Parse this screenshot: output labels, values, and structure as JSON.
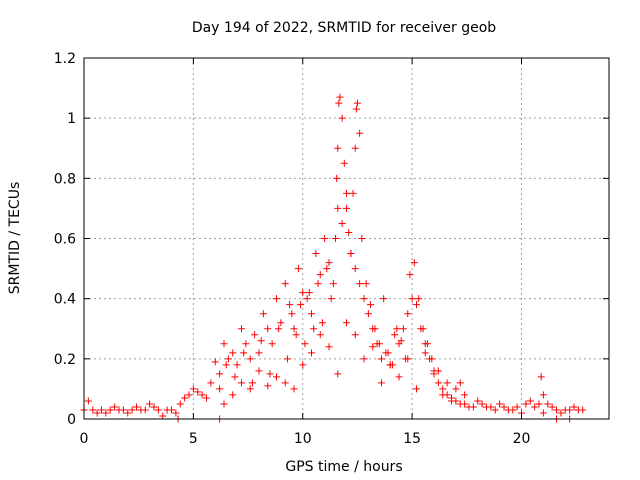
{
  "chart_data": {
    "type": "scatter",
    "title": "Day 194 of 2022, SRMTID for receiver geob",
    "xlabel": "GPS time / hours",
    "ylabel": "SRMTID / TECUs",
    "xlim": [
      0,
      24
    ],
    "ylim": [
      0,
      1.2
    ],
    "xticks": [
      0,
      5,
      10,
      15,
      20
    ],
    "xtick_labels": [
      "0",
      "5",
      "10",
      "15",
      "20"
    ],
    "yticks": [
      0,
      0.2,
      0.4,
      0.6,
      0.8,
      1,
      1.2
    ],
    "ytick_labels": [
      "0",
      "0.2",
      "0.4",
      "0.6",
      "0.8",
      "1",
      "1.2"
    ],
    "grid": true,
    "marker": "+",
    "color": "#ff0000",
    "series": [
      {
        "name": "SRMTID",
        "x": [
          0.0,
          0.2,
          0.4,
          0.6,
          0.8,
          1.0,
          1.2,
          1.4,
          1.6,
          1.8,
          2.0,
          2.2,
          2.4,
          2.6,
          2.8,
          3.0,
          3.2,
          3.4,
          3.6,
          3.8,
          4.0,
          4.2,
          4.4,
          4.6,
          4.8,
          5.0,
          5.2,
          5.4,
          5.6,
          5.8,
          6.0,
          6.2,
          6.4,
          6.6,
          6.8,
          7.0,
          7.2,
          7.4,
          7.6,
          7.8,
          8.0,
          8.2,
          8.4,
          8.6,
          8.8,
          9.0,
          9.2,
          9.4,
          9.6,
          9.8,
          10.0,
          10.2,
          10.4,
          10.6,
          10.8,
          11.0,
          11.2,
          11.4,
          11.6,
          11.8,
          12.0,
          12.2,
          12.4,
          12.6,
          12.8,
          13.0,
          13.2,
          13.4,
          13.6,
          13.8,
          14.0,
          14.2,
          14.4,
          14.6,
          14.8,
          15.0,
          15.2,
          15.4,
          15.6,
          15.8,
          16.0,
          16.2,
          16.4,
          16.6,
          16.8,
          17.0,
          17.2,
          17.4,
          17.6,
          17.8,
          18.0,
          18.2,
          18.4,
          18.6,
          18.8,
          19.0,
          19.2,
          19.4,
          19.6,
          19.8,
          20.0,
          20.2,
          20.4,
          20.6,
          20.8,
          21.0,
          21.2,
          21.4,
          21.6,
          21.8,
          22.0,
          22.2,
          22.4,
          22.6,
          22.8,
          6.2,
          6.5,
          6.9,
          7.3,
          7.7,
          8.1,
          8.5,
          8.9,
          9.3,
          9.5,
          9.7,
          9.9,
          10.1,
          10.3,
          10.5,
          10.7,
          10.9,
          11.1,
          11.3,
          11.5,
          11.55,
          11.6,
          11.65,
          11.7,
          11.8,
          11.9,
          12.0,
          12.1,
          12.2,
          12.3,
          12.4,
          12.45,
          12.5,
          12.6,
          12.7,
          12.9,
          13.1,
          13.3,
          13.5,
          13.7,
          13.9,
          14.1,
          14.3,
          14.5,
          14.7,
          14.9,
          15.1,
          15.3,
          15.5,
          15.7,
          15.9,
          16.2,
          16.6,
          17.0,
          17.4,
          6.4,
          6.8,
          7.2,
          7.6,
          8.0,
          8.4,
          8.8,
          9.2,
          9.6,
          10.0,
          10.4,
          10.8,
          11.2,
          11.6,
          12.0,
          12.4,
          12.8,
          13.2,
          13.6,
          14.0,
          14.4,
          14.8,
          15.2,
          15.6,
          16.0,
          16.4,
          16.8,
          17.2,
          20.9,
          21.0,
          4.3,
          6.2,
          21.6,
          22.2
        ],
        "y": [
          0.03,
          0.06,
          0.03,
          0.02,
          0.03,
          0.02,
          0.03,
          0.04,
          0.03,
          0.03,
          0.02,
          0.03,
          0.04,
          0.03,
          0.03,
          0.05,
          0.04,
          0.03,
          0.01,
          0.03,
          0.03,
          0.02,
          0.05,
          0.07,
          0.08,
          0.1,
          0.09,
          0.08,
          0.07,
          0.12,
          0.19,
          0.15,
          0.25,
          0.2,
          0.22,
          0.18,
          0.3,
          0.25,
          0.2,
          0.28,
          0.22,
          0.35,
          0.3,
          0.25,
          0.4,
          0.32,
          0.45,
          0.38,
          0.3,
          0.5,
          0.42,
          0.4,
          0.35,
          0.55,
          0.48,
          0.6,
          0.52,
          0.45,
          0.7,
          0.65,
          0.75,
          0.55,
          0.5,
          0.45,
          0.4,
          0.35,
          0.3,
          0.25,
          0.2,
          0.22,
          0.18,
          0.28,
          0.25,
          0.3,
          0.35,
          0.4,
          0.38,
          0.3,
          0.25,
          0.2,
          0.15,
          0.12,
          0.1,
          0.08,
          0.07,
          0.06,
          0.05,
          0.05,
          0.04,
          0.04,
          0.06,
          0.05,
          0.04,
          0.04,
          0.03,
          0.05,
          0.04,
          0.03,
          0.03,
          0.04,
          0.02,
          0.05,
          0.06,
          0.04,
          0.05,
          0.08,
          0.05,
          0.04,
          0.03,
          0.02,
          0.03,
          0.03,
          0.04,
          0.03,
          0.03,
          0.1,
          0.18,
          0.14,
          0.22,
          0.12,
          0.26,
          0.15,
          0.3,
          0.2,
          0.35,
          0.28,
          0.38,
          0.25,
          0.42,
          0.3,
          0.45,
          0.32,
          0.5,
          0.4,
          0.6,
          0.8,
          0.9,
          1.05,
          1.07,
          1.0,
          0.85,
          0.7,
          0.62,
          0.55,
          0.75,
          0.9,
          1.03,
          1.05,
          0.95,
          0.6,
          0.45,
          0.38,
          0.3,
          0.25,
          0.4,
          0.22,
          0.18,
          0.3,
          0.26,
          0.2,
          0.48,
          0.52,
          0.4,
          0.3,
          0.25,
          0.2,
          0.16,
          0.12,
          0.1,
          0.08,
          0.05,
          0.08,
          0.12,
          0.1,
          0.16,
          0.11,
          0.14,
          0.12,
          0.1,
          0.18,
          0.22,
          0.28,
          0.24,
          0.15,
          0.32,
          0.28,
          0.2,
          0.24,
          0.12,
          0.18,
          0.14,
          0.2,
          0.1,
          0.22,
          0.16,
          0.08,
          0.06,
          0.12,
          0.14,
          0.02,
          0.0,
          0.0,
          0.0,
          0.0
        ]
      }
    ]
  }
}
